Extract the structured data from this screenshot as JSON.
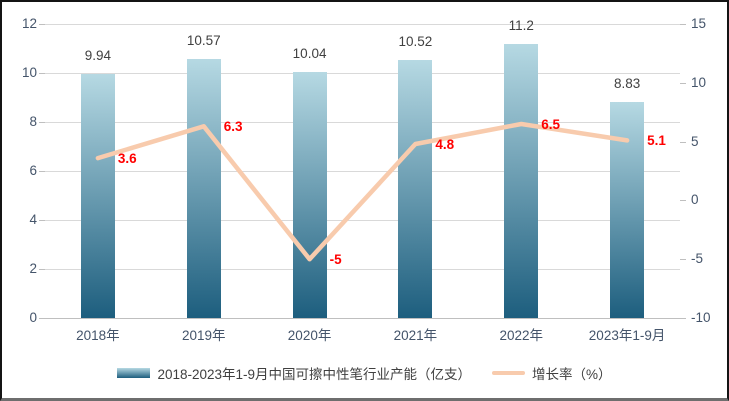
{
  "window": {
    "background": "#ffffff",
    "border_color": "#141414"
  },
  "chart_data": {
    "type": "combo",
    "categories": [
      "2018年",
      "2019年",
      "2020年",
      "2021年",
      "2022年",
      "2023年1-9月"
    ],
    "series": [
      {
        "name": "2018-2023年1-9月中国可擦中性笔行业产能（亿支）",
        "type": "bar",
        "axis": "left",
        "values": [
          9.94,
          10.57,
          10.04,
          10.52,
          11.2,
          8.83
        ]
      },
      {
        "name": "增长率（%）",
        "type": "line",
        "axis": "right",
        "values": [
          3.6,
          6.3,
          -5,
          4.8,
          6.5,
          5.1
        ]
      }
    ],
    "left_axis": {
      "min": 0,
      "max": 12,
      "step": 2,
      "ticks": [
        0,
        2,
        4,
        6,
        8,
        10,
        12
      ]
    },
    "right_axis": {
      "min": -10,
      "max": 15,
      "step": 5,
      "ticks": [
        -10,
        -5,
        0,
        5,
        10,
        15
      ]
    },
    "grid": true,
    "legend_position": "bottom",
    "title": ""
  },
  "colors": {
    "bar_gradient_top": "#b6d9e3",
    "bar_gradient_bottom": "#1d5e7e",
    "line": "#f8cbad",
    "line_label": "#ff0000",
    "bar_label": "#404040",
    "axis_label": "#44546a",
    "gridline": "#d9d9d9",
    "legend_text": "#404040"
  }
}
